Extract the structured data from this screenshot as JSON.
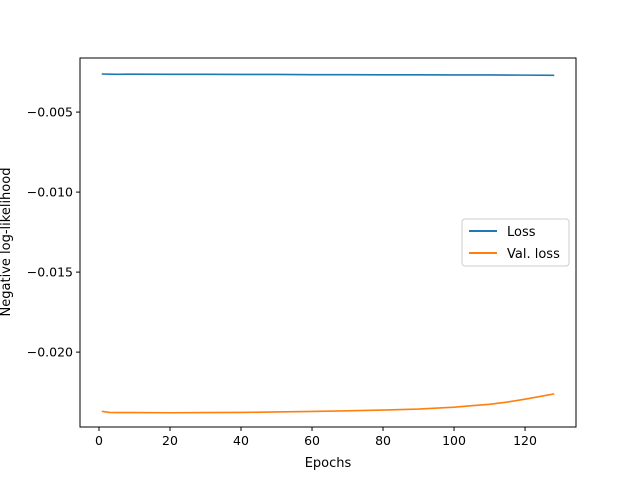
{
  "chart_data": {
    "type": "line",
    "title": "",
    "xlabel": "Epochs",
    "ylabel": "Negative log-likelihood",
    "xlim": [
      -5.35,
      134.35
    ],
    "ylim": [
      -0.02468,
      -0.00162
    ],
    "x_ticks": [
      0,
      20,
      40,
      60,
      80,
      100,
      120
    ],
    "x_tick_labels": [
      "0",
      "20",
      "40",
      "60",
      "80",
      "100",
      "120"
    ],
    "y_ticks": [
      -0.005,
      -0.01,
      -0.015,
      -0.02
    ],
    "y_tick_labels": [
      "−0.005",
      "−0.010",
      "−0.015",
      "−0.020"
    ],
    "grid": false,
    "legend_position": "center-right",
    "series": [
      {
        "name": "Loss",
        "color": "#1f77b4",
        "x": [
          1,
          5,
          10,
          20,
          30,
          40,
          50,
          60,
          70,
          80,
          90,
          100,
          110,
          120,
          128
        ],
        "y": [
          -0.00262,
          -0.00264,
          -0.00263,
          -0.00264,
          -0.00264,
          -0.00265,
          -0.00265,
          -0.00266,
          -0.00266,
          -0.00267,
          -0.00267,
          -0.00268,
          -0.00268,
          -0.00269,
          -0.0027
        ]
      },
      {
        "name": "Val. loss",
        "color": "#ff7f0e",
        "x": [
          1,
          3,
          5,
          10,
          20,
          30,
          40,
          50,
          60,
          70,
          80,
          90,
          100,
          105,
          110,
          115,
          120,
          125,
          128
        ],
        "y": [
          -0.02371,
          -0.02377,
          -0.02378,
          -0.02378,
          -0.02379,
          -0.02378,
          -0.02377,
          -0.02374,
          -0.02371,
          -0.02367,
          -0.02362,
          -0.02356,
          -0.02344,
          -0.02335,
          -0.02326,
          -0.02312,
          -0.02294,
          -0.02274,
          -0.02262
        ]
      }
    ]
  }
}
